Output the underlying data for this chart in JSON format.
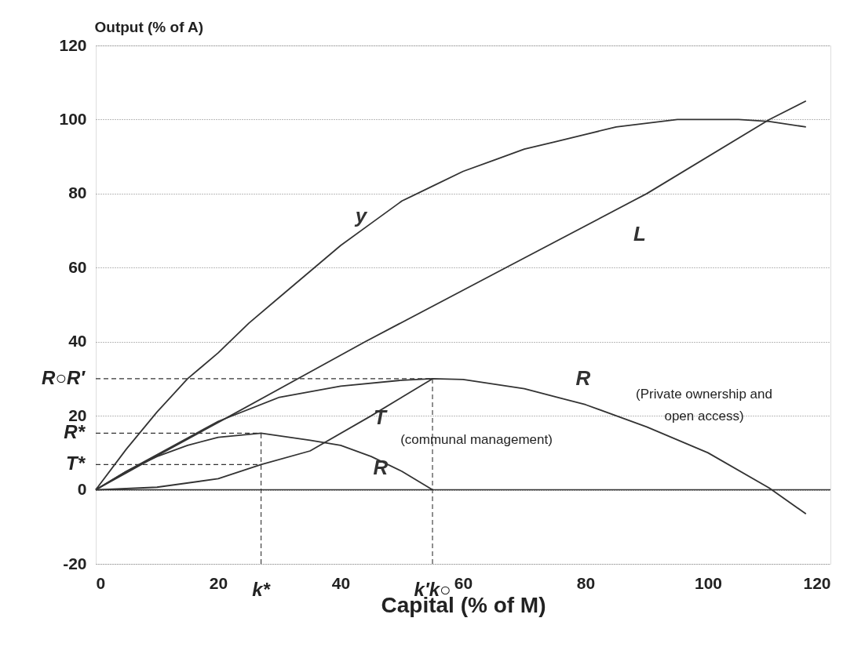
{
  "chart_data": {
    "type": "line",
    "ylabel": "Output  (% of A)",
    "xlabel": "Capital  (% of M)",
    "xlim": [
      0,
      120
    ],
    "xticks": [
      0,
      20,
      40,
      60,
      80,
      100,
      120
    ],
    "ylim": [
      -20,
      120
    ],
    "yticks": [
      -20,
      0,
      20,
      40,
      60,
      80,
      100,
      120
    ],
    "grid": "y",
    "marker": "none",
    "line_style": "solid",
    "series": [
      {
        "name": "y",
        "color": "#333333",
        "x": [
          0,
          5,
          10,
          15,
          20,
          25,
          30,
          35,
          40,
          45,
          50,
          55,
          60,
          65,
          70,
          75,
          80,
          85,
          90,
          95,
          100,
          105,
          110,
          116
        ],
        "values": [
          0,
          11,
          21,
          30,
          37,
          45,
          52,
          59,
          66,
          72,
          78,
          82,
          86,
          89,
          92,
          94,
          96,
          98,
          99,
          100,
          100,
          100,
          99.5,
          98
        ]
      },
      {
        "name": "L",
        "color": "#333333",
        "x": [
          0,
          5,
          10,
          22,
          44,
          67,
          90,
          110,
          116
        ],
        "values": [
          0,
          4.6,
          9.2,
          20,
          40,
          60,
          80,
          100,
          105
        ]
      },
      {
        "name": "R",
        "color": "#333333",
        "x": [
          0,
          5,
          10,
          20,
          30,
          40,
          50,
          55,
          60,
          70,
          80,
          90,
          100,
          110,
          116
        ],
        "values": [
          0,
          5,
          9.5,
          18.5,
          25,
          28,
          29.6,
          30,
          29.8,
          27.3,
          23,
          17,
          10,
          0.5,
          -6.5
        ]
      },
      {
        "name": "R",
        "color": "#333333",
        "x": [
          0,
          5,
          10,
          15,
          20,
          27,
          35,
          40,
          45,
          50,
          55
        ],
        "values": [
          0,
          5,
          9,
          12,
          14.2,
          15.3,
          13.4,
          12,
          9,
          5,
          0
        ]
      },
      {
        "name": "T",
        "color": "#333333",
        "x": [
          0,
          10,
          20,
          27,
          35,
          45,
          50,
          55
        ],
        "values": [
          0,
          0.7,
          3,
          6.8,
          10.5,
          20,
          25,
          30
        ]
      }
    ],
    "ref_lines": [
      {
        "axis": "y",
        "value": 0,
        "label": null,
        "line_style": "solid",
        "color": "#333333"
      },
      {
        "axis": "y",
        "value": 30,
        "label": "R○R′",
        "line_style": "dashed",
        "color": "#333333"
      },
      {
        "axis": "y",
        "value": 15.3,
        "label": "R*",
        "line_style": "dashed",
        "color": "#333333"
      },
      {
        "axis": "y",
        "value": 6.8,
        "label": "T*",
        "line_style": "dashed",
        "color": "#333333"
      },
      {
        "axis": "x",
        "value": 27,
        "label": "k*",
        "line_style": "dashed",
        "color": "#333333"
      },
      {
        "axis": "x",
        "value": 55,
        "label": "k′k○",
        "line_style": "dashed",
        "color": "#333333"
      }
    ],
    "annotations": [
      "(Private ownership and\nopen access)",
      "(communal management)"
    ]
  }
}
